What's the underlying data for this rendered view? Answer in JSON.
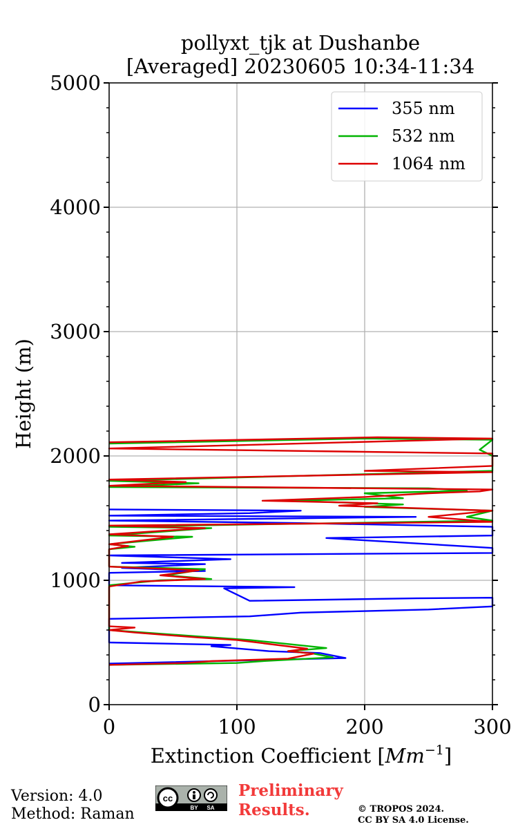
{
  "chart_data": {
    "type": "line",
    "title_line1": "pollyxt_tjk at Dushanbe",
    "title_line2": "[Averaged] 20230605 10:34-11:34",
    "xlabel": "Extinction Coefficient [",
    "xlabel_unit": "Mm",
    "xlabel_exp": "−1",
    "xlabel_close": "]",
    "ylabel": "Height (m)",
    "xlim": [
      0,
      300
    ],
    "ylim": [
      0,
      5000
    ],
    "x_ticks": [
      0,
      100,
      200,
      300
    ],
    "x_tick_labels": [
      "0",
      "100",
      "200",
      "300"
    ],
    "y_ticks": [
      0,
      1000,
      2000,
      3000,
      4000,
      5000
    ],
    "y_tick_labels": [
      "0",
      "1000",
      "2000",
      "3000",
      "4000",
      "5000"
    ],
    "grid": true,
    "legend_position": "top-right",
    "series": [
      {
        "name": "355 nm",
        "color": "#0000ff",
        "points": [
          [
            0,
            330
          ],
          [
            185,
            375
          ],
          [
            165,
            415
          ],
          [
            125,
            430
          ],
          [
            80,
            470
          ],
          [
            95,
            480
          ],
          [
            0,
            500
          ],
          [
            0,
            690
          ],
          [
            110,
            710
          ],
          [
            150,
            740
          ],
          [
            250,
            765
          ],
          [
            300,
            790
          ],
          [
            300,
            860
          ],
          [
            240,
            855
          ],
          [
            110,
            835
          ],
          [
            90,
            935
          ],
          [
            145,
            945
          ],
          [
            0,
            960
          ],
          [
            0,
            1060
          ],
          [
            75,
            1075
          ],
          [
            10,
            1100
          ],
          [
            75,
            1130
          ],
          [
            10,
            1140
          ],
          [
            95,
            1170
          ],
          [
            0,
            1200
          ],
          [
            300,
            1220
          ],
          [
            300,
            1260
          ],
          [
            170,
            1340
          ],
          [
            300,
            1360
          ],
          [
            300,
            1430
          ],
          [
            150,
            1460
          ],
          [
            0,
            1480
          ],
          [
            240,
            1510
          ],
          [
            0,
            1520
          ],
          [
            110,
            1540
          ],
          [
            150,
            1560
          ],
          [
            0,
            1570
          ]
        ]
      },
      {
        "name": "532 nm",
        "color": "#00b400",
        "points": [
          [
            0,
            320
          ],
          [
            100,
            335
          ],
          [
            120,
            350
          ],
          [
            175,
            380
          ],
          [
            160,
            410
          ],
          [
            140,
            430
          ],
          [
            170,
            455
          ],
          [
            110,
            520
          ],
          [
            75,
            545
          ],
          [
            0,
            600
          ],
          [
            0,
            960
          ],
          [
            40,
            1000
          ],
          [
            80,
            1010
          ],
          [
            45,
            1040
          ],
          [
            75,
            1090
          ],
          [
            0,
            1110
          ],
          [
            0,
            1250
          ],
          [
            20,
            1270
          ],
          [
            0,
            1290
          ],
          [
            65,
            1350
          ],
          [
            0,
            1360
          ],
          [
            80,
            1420
          ],
          [
            0,
            1430
          ],
          [
            300,
            1480
          ],
          [
            280,
            1510
          ],
          [
            300,
            1560
          ],
          [
            200,
            1590
          ],
          [
            230,
            1610
          ],
          [
            140,
            1640
          ],
          [
            230,
            1660
          ],
          [
            200,
            1700
          ],
          [
            280,
            1720
          ],
          [
            250,
            1740
          ],
          [
            0,
            1750
          ],
          [
            70,
            1780
          ],
          [
            0,
            1800
          ],
          [
            300,
            1880
          ],
          [
            300,
            2000
          ],
          [
            290,
            2050
          ],
          [
            300,
            2130
          ],
          [
            200,
            2140
          ],
          [
            0,
            2100
          ]
        ]
      },
      {
        "name": "1064 nm",
        "color": "#dd0000",
        "points": [
          [
            0,
            320
          ],
          [
            60,
            335
          ],
          [
            80,
            350
          ],
          [
            140,
            370
          ],
          [
            160,
            410
          ],
          [
            140,
            430
          ],
          [
            155,
            450
          ],
          [
            100,
            520
          ],
          [
            70,
            540
          ],
          [
            20,
            580
          ],
          [
            0,
            600
          ],
          [
            20,
            620
          ],
          [
            0,
            630
          ],
          [
            0,
            950
          ],
          [
            25,
            990
          ],
          [
            75,
            1010
          ],
          [
            40,
            1040
          ],
          [
            70,
            1080
          ],
          [
            0,
            1110
          ],
          [
            0,
            1250
          ],
          [
            15,
            1275
          ],
          [
            0,
            1290
          ],
          [
            50,
            1350
          ],
          [
            0,
            1370
          ],
          [
            75,
            1420
          ],
          [
            0,
            1440
          ],
          [
            300,
            1470
          ],
          [
            250,
            1510
          ],
          [
            300,
            1560
          ],
          [
            180,
            1600
          ],
          [
            210,
            1620
          ],
          [
            120,
            1640
          ],
          [
            200,
            1670
          ],
          [
            250,
            1700
          ],
          [
            290,
            1715
          ],
          [
            300,
            1730
          ],
          [
            0,
            1760
          ],
          [
            60,
            1790
          ],
          [
            0,
            1810
          ],
          [
            300,
            1870
          ],
          [
            200,
            1880
          ],
          [
            300,
            1920
          ],
          [
            300,
            2020
          ],
          [
            0,
            2060
          ],
          [
            300,
            2140
          ],
          [
            210,
            2150
          ],
          [
            0,
            2110
          ]
        ]
      }
    ]
  },
  "footer": {
    "version": "Version: 4.0",
    "method": "Method: Raman",
    "prelim_line1": "Preliminary",
    "prelim_line2": "Results.",
    "copyright_line1": "© TROPOS 2024.",
    "copyright_line2": "CC BY SA 4.0 License.",
    "badge_cc": "cc",
    "badge_by": "BY",
    "badge_sa": "SA"
  }
}
